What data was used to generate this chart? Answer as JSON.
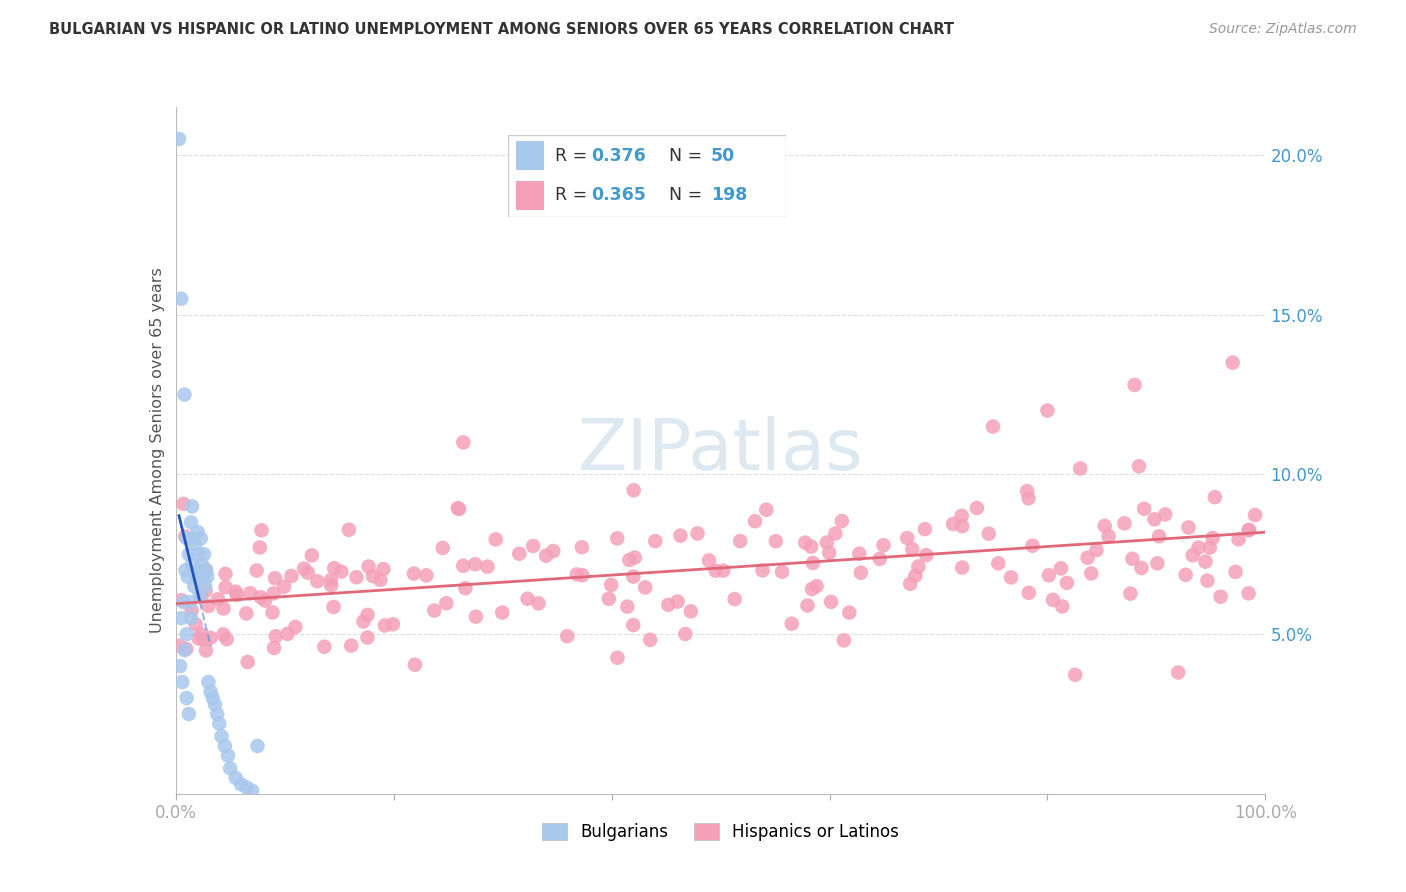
{
  "title": "BULGARIAN VS HISPANIC OR LATINO UNEMPLOYMENT AMONG SENIORS OVER 65 YEARS CORRELATION CHART",
  "source": "Source: ZipAtlas.com",
  "ylabel": "Unemployment Among Seniors over 65 years",
  "right_ytick_vals": [
    5.0,
    10.0,
    15.0,
    20.0
  ],
  "right_ytick_labels": [
    "5.0%",
    "10.0%",
    "15.0%",
    "20.0%"
  ],
  "xmin": 0.0,
  "xmax": 100.0,
  "ymin": 0.0,
  "ymax": 21.5,
  "bulgarian_R": 0.376,
  "bulgarian_N": 50,
  "hispanic_R": 0.365,
  "hispanic_N": 198,
  "bulgarian_color": "#a8c8ec",
  "hispanic_color": "#f4a0b8",
  "bulgarian_line_color": "#2255bb",
  "bulgarian_dash_color": "#6699dd",
  "hispanic_line_color": "#e06878",
  "watermark_color": "#dde8f0",
  "title_color": "#333333",
  "source_color": "#999999",
  "label_color": "#555555",
  "right_tick_color": "#4499cc",
  "grid_color": "#dddddd",
  "legend_box_edge": "#cccccc"
}
